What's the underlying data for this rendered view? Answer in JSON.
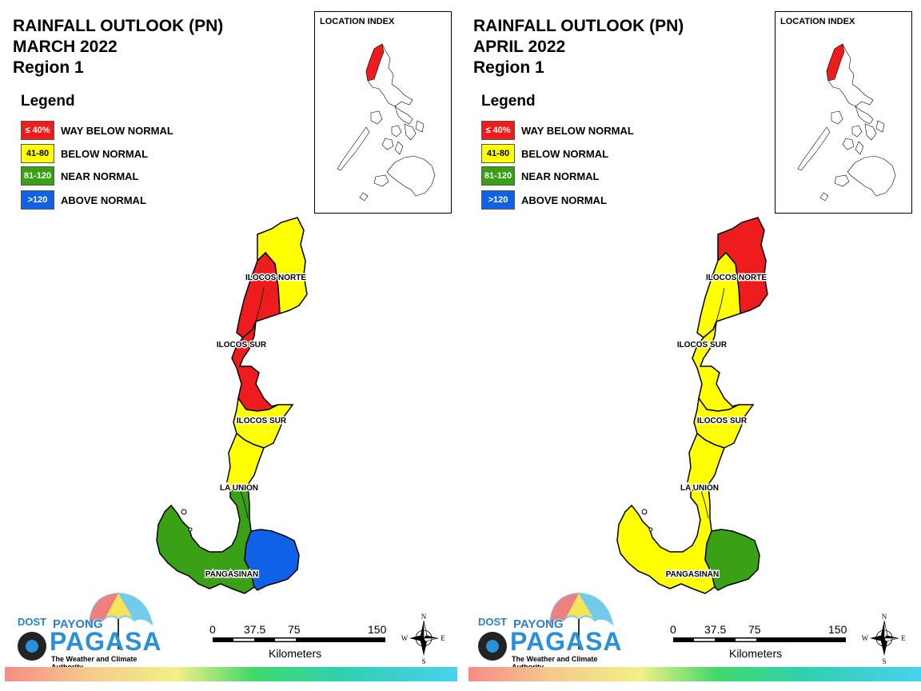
{
  "colors": {
    "way_below": "#ee1c1c",
    "below": "#ffff00",
    "near": "#3aa015",
    "above": "#0f62e6",
    "border": "#000000"
  },
  "legend": {
    "title": "Legend",
    "items": [
      {
        "range": "≤ 40%",
        "label": "WAY BELOW NORMAL",
        "text_color": "#ffffff"
      },
      {
        "range": "41-80",
        "label": "BELOW NORMAL",
        "text_color": "#000000"
      },
      {
        "range": "81-120",
        "label": "NEAR NORMAL",
        "text_color": "#ffffff"
      },
      {
        "range": ">120",
        "label": "ABOVE NORMAL",
        "text_color": "#ffffff"
      }
    ]
  },
  "panels": [
    {
      "title_line1": "RAINFALL OUTLOOK (PN)",
      "title_line2": "MARCH 2022",
      "title_line3": "Region 1",
      "inset_title": "LOCATION INDEX",
      "labels": {
        "ilocos_norte": "ILOCOS NORTE",
        "ilocos_sur_1": "ILOCOS SUR",
        "ilocos_sur_2": "ILOCOS SUR",
        "la_union": "LA UNION",
        "pangasinan": "PANGASINAN"
      },
      "categories": {
        "ilocos_norte_north": "below",
        "ilocos_norte_south": "way_below",
        "ilocos_sur_north": "way_below",
        "ilocos_sur_south": "below",
        "la_union": "below",
        "pangasinan_west": "near",
        "pangasinan_east": "above"
      }
    },
    {
      "title_line1": "RAINFALL OUTLOOK (PN)",
      "title_line2": "APRIL 2022",
      "title_line3": "Region 1",
      "inset_title": "LOCATION INDEX",
      "labels": {
        "ilocos_norte": "ILOCOS NORTE",
        "ilocos_sur_1": "ILOCOS SUR",
        "ilocos_sur_2": "ILOCOS SUR",
        "la_union": "LA UNION",
        "pangasinan": "PANGASINAN"
      },
      "categories": {
        "ilocos_norte_north": "way_below",
        "ilocos_norte_south": "below",
        "ilocos_sur_north": "below",
        "ilocos_sur_south": "below",
        "la_union": "below",
        "pangasinan_west": "below",
        "pangasinan_east": "near"
      }
    }
  ],
  "scale": {
    "ticks": [
      "0",
      "37.5",
      "75",
      "150"
    ],
    "unit": "Kilometers"
  },
  "compass": {
    "n": "N",
    "s": "S",
    "e": "E",
    "w": "W"
  },
  "logo": {
    "dost": "DOST",
    "payong": "PAYONG",
    "pagasa": "PAGASA",
    "tagline": "The Weather and Climate Authority"
  }
}
